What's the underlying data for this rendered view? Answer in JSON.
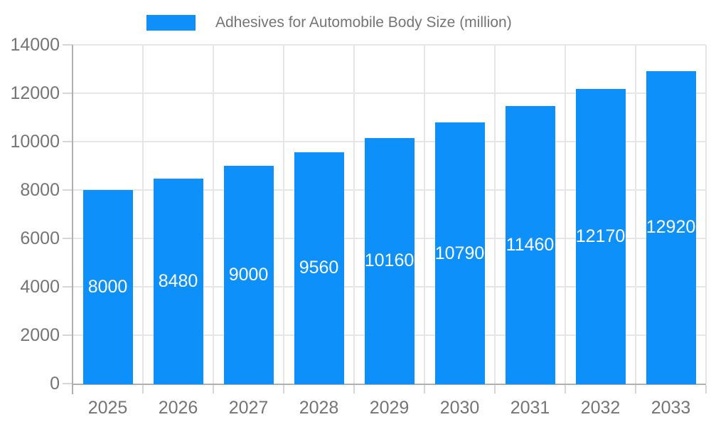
{
  "legend": {
    "position": "top",
    "label": "Adhesives for Automobile Body Size (million)"
  },
  "colors": {
    "bar": "#0d90f9",
    "background": "#ffffff",
    "gridline": "#e6e6e6",
    "axis_line": "#b0b0b0",
    "tick": "#d6d6d6",
    "axis_label": "#757575",
    "value_label": "#ffffff"
  },
  "chart_data": {
    "type": "bar",
    "title": "Adhesives for Automobile Body Size (million)",
    "categories": [
      "2025",
      "2026",
      "2027",
      "2028",
      "2029",
      "2030",
      "2031",
      "2032",
      "2033"
    ],
    "values": [
      8000,
      8480,
      9000,
      9560,
      10160,
      10790,
      11460,
      12170,
      12920
    ],
    "series": [
      {
        "name": "Adhesives for Automobile Body Size (million)",
        "values": [
          8000,
          8480,
          9000,
          9560,
          10160,
          10790,
          11460,
          12170,
          12920
        ]
      }
    ],
    "xlabel": "",
    "ylabel": "",
    "ylim": [
      0,
      14000
    ],
    "yticks": [
      0,
      2000,
      4000,
      6000,
      8000,
      10000,
      12000,
      14000
    ],
    "grid": "horizontal and vertical light gray gridlines",
    "legend_position": "top-center",
    "value_label_position": "inside-center"
  }
}
